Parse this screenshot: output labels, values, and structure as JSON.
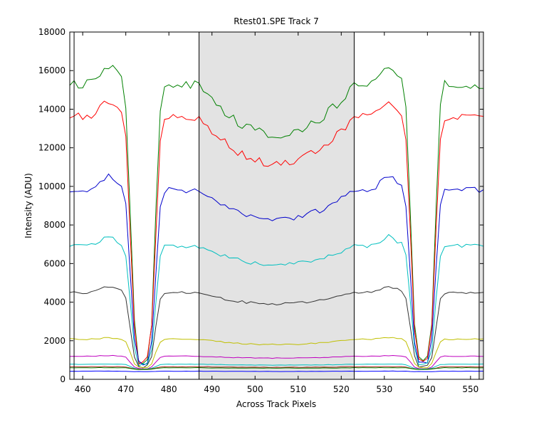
{
  "chart_data": {
    "type": "line",
    "title": "Rtest01.SPE    Track 7",
    "xlabel": "Across Track Pixels",
    "ylabel": "Intensity (ADU)",
    "xlim": [
      457,
      553
    ],
    "ylim": [
      0,
      18000
    ],
    "xticks": [
      460,
      470,
      480,
      490,
      500,
      510,
      520,
      530,
      540,
      550
    ],
    "yticks": [
      0,
      2000,
      4000,
      6000,
      8000,
      10000,
      12000,
      14000,
      16000,
      18000
    ],
    "grid": false,
    "legend": "none",
    "shaded_region": {
      "x": [
        487,
        523
      ],
      "color": "#e3e3e3"
    },
    "vertical_lines": [
      458,
      487,
      523,
      552
    ],
    "right_shaded_region": {
      "x": [
        552,
        553
      ],
      "color": "#e3e3e3"
    },
    "series": [
      {
        "color": "#008000",
        "plateau": 15300,
        "peak": 16300,
        "trough": 900,
        "center_dip": 12700,
        "sag": 0.85
      },
      {
        "color": "#ff0000",
        "plateau": 13600,
        "peak": 14400,
        "trough": 850,
        "center_dip": 11200,
        "sag": 0.85
      },
      {
        "color": "#0000cc",
        "plateau": 9800,
        "peak": 10500,
        "trough": 750,
        "center_dip": 8300,
        "sag": 0.85
      },
      {
        "color": "#00bfbf",
        "plateau": 6900,
        "peak": 7400,
        "trough": 700,
        "center_dip": 5950,
        "sag": 0.85
      },
      {
        "color": "#333333",
        "plateau": 4500,
        "peak": 4800,
        "trough": 650,
        "center_dip": 3900,
        "sag": 0.85
      },
      {
        "color": "#bfbf00",
        "plateau": 2080,
        "peak": 2150,
        "trough": 600,
        "center_dip": 1800,
        "sag": 0.85
      },
      {
        "color": "#bf00bf",
        "plateau": 1200,
        "peak": 1230,
        "trough": 550,
        "center_dip": 1100,
        "sag": 0.85
      },
      {
        "color": "#00bfbf",
        "plateau": 780,
        "peak": 790,
        "trough": 530,
        "center_dip": 740,
        "sag": 0.85
      },
      {
        "color": "#b22222",
        "plateau": 650,
        "peak": 660,
        "trough": 520,
        "center_dip": 620,
        "sag": 0.85
      },
      {
        "color": "#008000",
        "plateau": 600,
        "peak": 605,
        "trough": 510,
        "center_dip": 580,
        "sag": 0.85
      },
      {
        "color": "#0000ff",
        "plateau": 420,
        "peak": 425,
        "trough": 400,
        "center_dip": 410,
        "sag": 0.85
      }
    ],
    "trough_centers": [
      474,
      539
    ]
  }
}
